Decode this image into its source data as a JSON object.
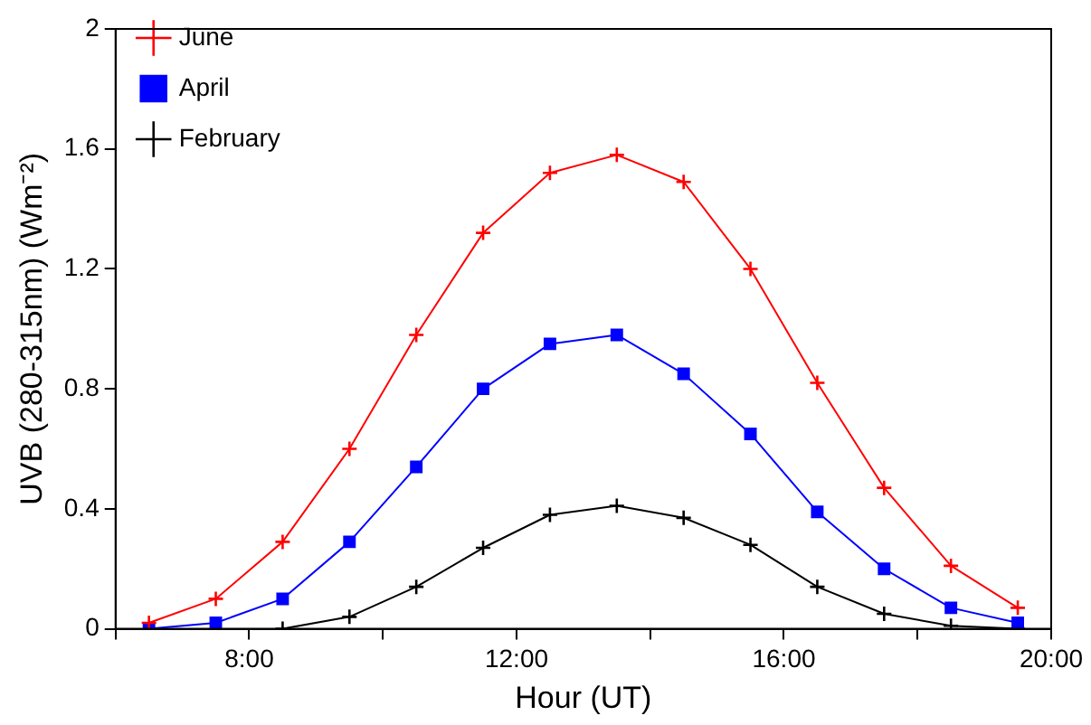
{
  "chart_data": {
    "type": "line",
    "xlabel": "Hour (UT)",
    "ylabel": "UVB (280-315nm) (Wm⁻²)",
    "x": [
      6.5,
      7.5,
      8.5,
      9.5,
      10.5,
      11.5,
      12.5,
      13.5,
      14.5,
      15.5,
      16.5,
      17.5,
      18.5,
      19.5
    ],
    "xlim": [
      6,
      20
    ],
    "xticks": [
      {
        "value": 6,
        "label": null
      },
      {
        "value": 8,
        "label": "8:00"
      },
      {
        "value": 10,
        "label": null
      },
      {
        "value": 12,
        "label": "12:00"
      },
      {
        "value": 14,
        "label": null
      },
      {
        "value": 16,
        "label": "16:00"
      },
      {
        "value": 18,
        "label": null
      },
      {
        "value": 20,
        "label": "20:00"
      }
    ],
    "ylim": [
      0,
      2
    ],
    "yticks": [
      0,
      0.4,
      0.8,
      1.2,
      1.6,
      2
    ],
    "grid": false,
    "legend": "top left",
    "line_style": "solid",
    "series": [
      {
        "name": "February",
        "color": "#000000",
        "marker": "cross",
        "values": [
          null,
          null,
          0,
          0.04,
          0.14,
          0.27,
          0.38,
          0.41,
          0.37,
          0.28,
          0.14,
          0.05,
          0.01,
          0
        ]
      },
      {
        "name": "April",
        "color": "#0000ff",
        "marker": "square",
        "values": [
          0,
          0.02,
          0.1,
          0.29,
          0.54,
          0.8,
          0.95,
          0.98,
          0.85,
          0.65,
          0.39,
          0.2,
          0.07,
          0.02
        ]
      },
      {
        "name": "June",
        "color": "#ff0000",
        "marker": "cross",
        "values": [
          0.02,
          0.1,
          0.29,
          0.6,
          0.98,
          1.32,
          1.52,
          1.58,
          1.49,
          1.2,
          0.82,
          0.47,
          0.21,
          0.07
        ]
      }
    ]
  }
}
